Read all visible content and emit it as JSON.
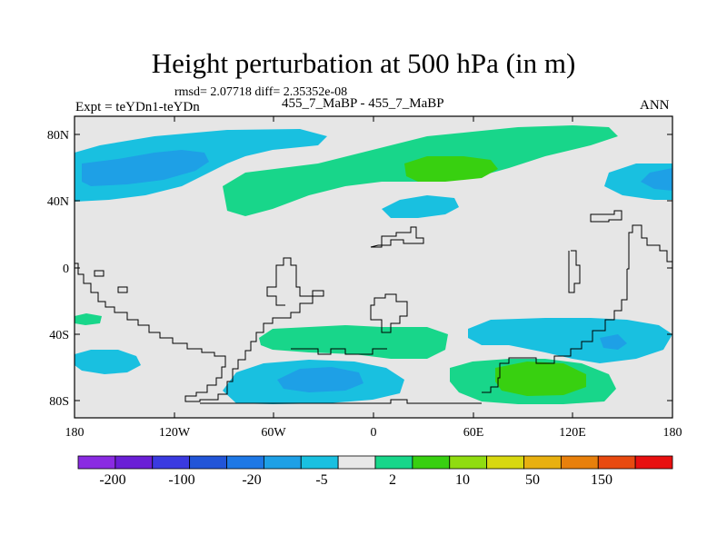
{
  "header": {
    "title": "Height perturbation at 500 hPa (in m)",
    "stats": "rmsd= 2.07718 diff= 2.35352e-08",
    "left_label": "Expt = teYDn1-teYDn",
    "center_label": "455_7_MaBP - 455_7_MaBP",
    "right_label": "ANN"
  },
  "axes": {
    "x_ticks": [
      "180",
      "120W",
      "60W",
      "0",
      "60E",
      "120E",
      "180"
    ],
    "y_ticks": [
      "80N",
      "40N",
      "0",
      "40S",
      "80S"
    ]
  },
  "colorbar": {
    "colors": [
      "#8a2be2",
      "#6a1fd6",
      "#3a3ae0",
      "#2255d8",
      "#1e78e6",
      "#1ea0e6",
      "#19c0e0",
      "#e8e8e8",
      "#18d68a",
      "#38d010",
      "#90dc10",
      "#d8d810",
      "#e8b010",
      "#e8800c",
      "#e84a10",
      "#e81010"
    ],
    "labels": [
      "-200",
      "-100",
      "-20",
      "-5",
      "2",
      "10",
      "50",
      "150"
    ]
  },
  "map_colors": {
    "background": "#e6e6e6",
    "neg_light": "#19c0e0",
    "neg_mid": "#1ea0e6",
    "pos_light": "#18d68a",
    "pos_mid": "#38d010"
  }
}
